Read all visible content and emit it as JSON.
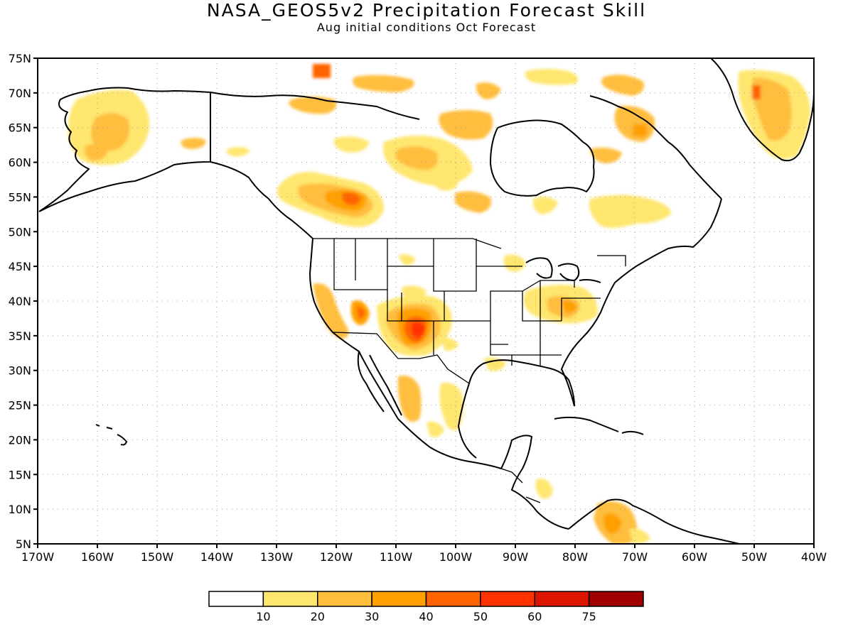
{
  "header": {
    "title": "NASA_GEOS5v2 Precipitation Forecast Skill",
    "subtitle": "Aug initial conditions  Oct Forecast"
  },
  "map": {
    "lat_labels": [
      "75N",
      "70N",
      "65N",
      "60N",
      "55N",
      "50N",
      "45N",
      "40N",
      "35N",
      "30N",
      "25N",
      "20N",
      "15N",
      "10N",
      "5N"
    ],
    "lon_labels": [
      "170W",
      "160W",
      "150W",
      "140W",
      "130W",
      "120W",
      "110W",
      "100W",
      "90W",
      "80W",
      "70W",
      "60W",
      "50W",
      "40W"
    ],
    "lat_range": [
      5,
      75
    ],
    "lon_range": [
      -170,
      -40
    ],
    "grid": true,
    "region": "North America",
    "colors": {
      "coast": "#000000",
      "grid": "#a0a0a0"
    }
  },
  "chart_data": {
    "type": "heatmap",
    "title": "NASA_GEOS5v2 Precipitation Forecast Skill",
    "subtitle": "Aug initial conditions  Oct Forecast",
    "xlim": [
      -170,
      -40
    ],
    "ylim": [
      5,
      75
    ],
    "grid": true,
    "legend_position": "bottom",
    "colorbar": {
      "ticks": [
        "10",
        "20",
        "30",
        "40",
        "50",
        "60",
        "75"
      ],
      "colors": [
        "#ffffff",
        "#ffe66e",
        "#ffbe3c",
        "#ffa000",
        "#ff6400",
        "#ff3200",
        "#dc1400",
        "#a00000"
      ]
    },
    "skill_regions": [
      {
        "lon": -108,
        "lat": 36,
        "skill": "40-60"
      },
      {
        "lon": -118,
        "lat": 54,
        "skill": "30-40"
      },
      {
        "lon": -157,
        "lat": 64,
        "skill": "20-30"
      },
      {
        "lon": -46,
        "lat": 66,
        "skill": "20-30"
      },
      {
        "lon": -120,
        "lat": 37,
        "skill": "20-30"
      },
      {
        "lon": -88,
        "lat": 38,
        "skill": "20-30"
      },
      {
        "lon": -73,
        "lat": 8,
        "skill": "20-30"
      },
      {
        "lon": -105,
        "lat": 62,
        "skill": "20-30"
      }
    ]
  }
}
